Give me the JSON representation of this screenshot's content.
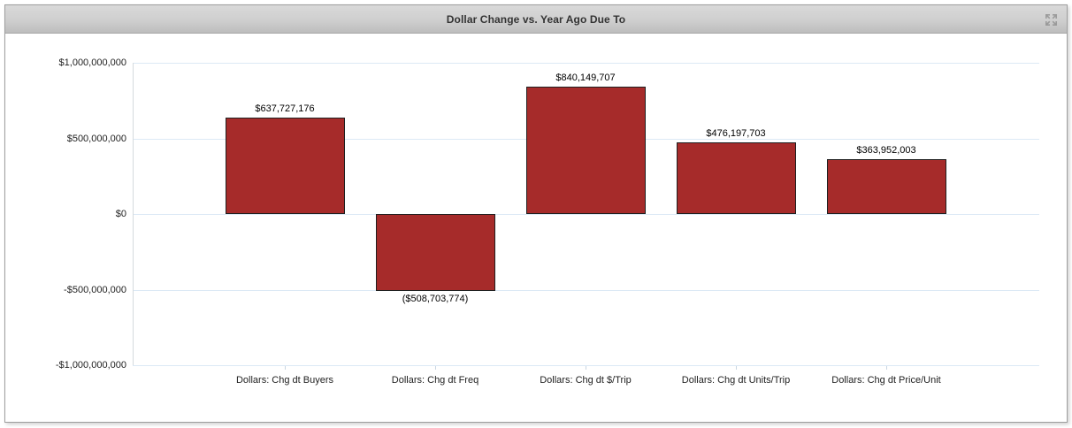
{
  "widget": {
    "title": "Dollar Change vs. Year Ago Due To",
    "icons": {
      "expand": "expand-arrows-icon"
    }
  },
  "chart_data": {
    "type": "bar",
    "title": "Dollar Change vs. Year Ago Due To",
    "categories": [
      "Dollars: Chg dt Buyers",
      "Dollars: Chg dt Freq",
      "Dollars: Chg dt $/Trip",
      "Dollars: Chg dt Units/Trip",
      "Dollars: Chg dt Price/Unit"
    ],
    "values": [
      637727176,
      -508703774,
      840149707,
      476197703,
      363952003
    ],
    "value_labels": [
      "$637,727,176",
      "($508,703,774)",
      "$840,149,707",
      "$476,197,703",
      "$363,952,003"
    ],
    "y_ticks": [
      1000000000,
      500000000,
      0,
      -500000000,
      -1000000000
    ],
    "y_tick_labels": [
      "$1,000,000,000",
      "$500,000,000",
      "$0",
      "-$500,000,000",
      "-$1,000,000,000"
    ],
    "ylim": [
      -1000000000,
      1000000000
    ],
    "xlabel": "",
    "ylabel": "",
    "grid": true,
    "legend_position": "none",
    "bar_color": "#A62B2A",
    "bar_border_color": "#1f1f1f",
    "gridline_color": "#dce9f5",
    "axis_line_color": "#d5dade",
    "xtick_color": "#c9d6e2",
    "label_color": "#000000"
  }
}
